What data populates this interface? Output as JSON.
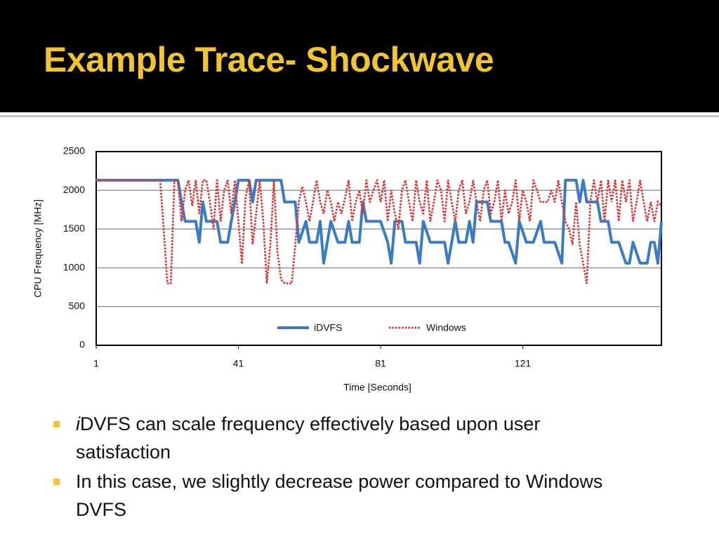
{
  "header": {
    "title": "Example Trace- Shockwave"
  },
  "chart_data": {
    "type": "line",
    "ylabel": "CPU Frequency [MHz]",
    "xlabel": "Time [Seconds]",
    "xlim": [
      1,
      160
    ],
    "xticks": [
      1,
      41,
      81,
      121
    ],
    "ylim": [
      0,
      2500
    ],
    "yticks": [
      0,
      500,
      1000,
      1500,
      2000,
      2500
    ],
    "grid": true,
    "legend": "bottom",
    "series": [
      {
        "name": "iDVFS",
        "color": "#3a7cc3",
        "style": "solid",
        "x": [
          1,
          24,
          25,
          26,
          29,
          30,
          31,
          32,
          35,
          36,
          38,
          39,
          40,
          41,
          44,
          45,
          46,
          53,
          54,
          57,
          58,
          60,
          61,
          63,
          64,
          65,
          66,
          67,
          69,
          71,
          72,
          73,
          75,
          76,
          77,
          81,
          83,
          84,
          85,
          87,
          88,
          91,
          92,
          93,
          95,
          99,
          100,
          102,
          103,
          105,
          106,
          107,
          108,
          111,
          112,
          115,
          116,
          117,
          119,
          120,
          122,
          124,
          126,
          127,
          130,
          132,
          133,
          136,
          137,
          138,
          139,
          142,
          143,
          145,
          146,
          148,
          150,
          151,
          152,
          154,
          156,
          157,
          158,
          159,
          160
        ],
        "values": [
          2130,
          2130,
          1850,
          1600,
          1600,
          1330,
          1850,
          1600,
          1600,
          1330,
          1330,
          1600,
          1850,
          2130,
          2130,
          1850,
          2130,
          2130,
          1850,
          1850,
          1330,
          1600,
          1330,
          1330,
          1600,
          1060,
          1330,
          1600,
          1330,
          1330,
          1600,
          1330,
          1330,
          1850,
          1600,
          1600,
          1330,
          1060,
          1600,
          1600,
          1330,
          1330,
          1060,
          1600,
          1330,
          1330,
          1060,
          1600,
          1330,
          1330,
          1600,
          1330,
          1850,
          1850,
          1600,
          1600,
          1330,
          1330,
          1060,
          1600,
          1330,
          1330,
          1600,
          1330,
          1330,
          1060,
          2130,
          2130,
          1850,
          2130,
          1850,
          1850,
          1600,
          1600,
          1330,
          1330,
          1060,
          1060,
          1330,
          1060,
          1060,
          1330,
          1330,
          1060,
          1600
        ]
      },
      {
        "name": "Windows",
        "color": "#d9393b",
        "style": "dotted",
        "x": [
          1,
          19,
          20,
          21,
          22,
          23,
          24,
          25,
          26,
          27,
          28,
          29,
          30,
          31,
          32,
          33,
          34,
          35,
          36,
          37,
          38,
          39,
          40,
          41,
          42,
          43,
          44,
          45,
          46,
          47,
          48,
          49,
          50,
          51,
          52,
          53,
          54,
          55,
          56,
          57,
          58,
          59,
          60,
          61,
          62,
          63,
          64,
          65,
          66,
          67,
          68,
          69,
          70,
          71,
          72,
          73,
          74,
          75,
          76,
          77,
          78,
          79,
          80,
          81,
          82,
          83,
          84,
          85,
          86,
          87,
          88,
          89,
          90,
          91,
          92,
          93,
          94,
          95,
          96,
          97,
          98,
          99,
          100,
          101,
          102,
          103,
          104,
          105,
          106,
          107,
          108,
          109,
          110,
          111,
          112,
          113,
          114,
          115,
          116,
          117,
          118,
          119,
          120,
          121,
          122,
          123,
          124,
          125,
          126,
          127,
          128,
          129,
          130,
          131,
          132,
          133,
          134,
          135,
          136,
          137,
          138,
          139,
          140,
          141,
          142,
          143,
          144,
          145,
          146,
          147,
          148,
          149,
          150,
          151,
          152,
          153,
          154,
          155,
          156,
          157,
          158,
          159,
          160
        ],
        "values": [
          2130,
          2130,
          1500,
          800,
          800,
          2130,
          2130,
          1600,
          2000,
          2130,
          1800,
          2130,
          1700,
          2130,
          2130,
          1850,
          1500,
          2130,
          1600,
          2000,
          2130,
          1700,
          2130,
          1600,
          1050,
          1900,
          2130,
          1300,
          1700,
          2130,
          1600,
          800,
          1300,
          2130,
          1200,
          850,
          800,
          800,
          800,
          1300,
          1850,
          2050,
          1850,
          1600,
          1850,
          2130,
          1850,
          1700,
          2000,
          1850,
          1600,
          1850,
          1700,
          1900,
          2130,
          1600,
          1850,
          2000,
          1700,
          2130,
          1850,
          2000,
          2130,
          1850,
          2130,
          1600,
          2000,
          1700,
          1500,
          2000,
          2130,
          1850,
          1600,
          2130,
          1850,
          1700,
          2130,
          1600,
          1850,
          2130,
          2000,
          1600,
          2130,
          1850,
          1600,
          2000,
          2130,
          1700,
          1850,
          2130,
          1850,
          1600,
          2000,
          2130,
          1700,
          1850,
          2130,
          1600,
          2000,
          1700,
          1850,
          2130,
          1600,
          2000,
          1850,
          1600,
          2130,
          2000,
          1850,
          1850,
          1850,
          2000,
          1850,
          2130,
          1850,
          1600,
          1500,
          1300,
          1850,
          1300,
          1050,
          800,
          1850,
          2130,
          1850,
          2130,
          1600,
          2130,
          1850,
          2130,
          1600,
          2130,
          1850,
          2130,
          1600,
          1850,
          2130,
          1850,
          1600,
          1850,
          1600,
          1850,
          1800
        ]
      }
    ]
  },
  "bullets": [
    {
      "italic": "i",
      "text": "DVFS can scale frequency effectively based upon user satisfaction"
    },
    {
      "text": "In this case, we slightly decrease power compared to Windows DVFS"
    }
  ]
}
